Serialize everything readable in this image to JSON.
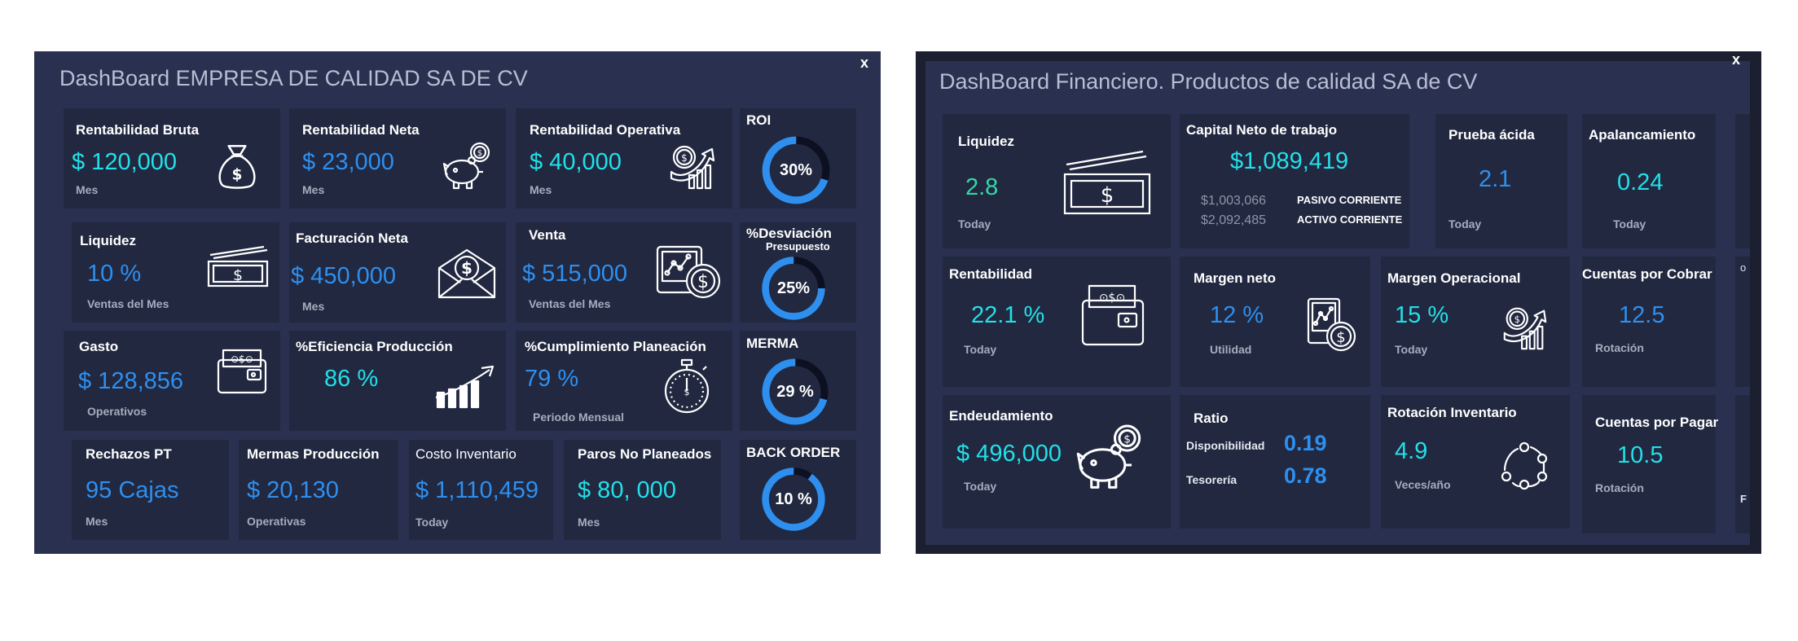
{
  "colors": {
    "panel": "#2a3150",
    "card": "#212840",
    "blue": "#2f8fee",
    "cyan": "#22e0e8",
    "green": "#34d7a6",
    "ring_track": "#0d1020"
  },
  "dashboard1": {
    "title": "DashBoard EMPRESA DE CALIDAD SA DE CV",
    "close_label": "x",
    "cards": {
      "rentabilidad_bruta": {
        "title": "Rentabilidad Bruta",
        "value": "$ 120,000",
        "sub": "Mes",
        "icon": "money-bag-icon"
      },
      "rentabilidad_neta": {
        "title": "Rentabilidad Neta",
        "value": "$ 23,000",
        "sub": "Mes",
        "icon": "piggy-bank-icon"
      },
      "rentabilidad_operativa": {
        "title": "Rentabilidad Operativa",
        "value": "$ 40,000",
        "sub": "Mes",
        "icon": "growth-coin-icon"
      },
      "liquidez": {
        "title": "Liquidez",
        "value": "10 %",
        "sub": "Ventas del Mes",
        "icon": "cash-stack-icon"
      },
      "facturacion_neta": {
        "title": "Facturación Neta",
        "value": "$ 450,000",
        "sub": "Mes",
        "icon": "money-envelope-icon"
      },
      "venta": {
        "title": "Venta",
        "value": "$ 515,000",
        "sub": "Ventas del Mes",
        "icon": "tablet-dollar-icon"
      },
      "gasto": {
        "title": "Gasto",
        "value": "$ 128,856",
        "sub": "Operativos",
        "icon": "wallet-icon"
      },
      "eficiencia": {
        "title": "%Eficiencia Producción",
        "value": "86 %",
        "icon": "growth-chart-icon"
      },
      "cumplimiento": {
        "title": "%Cumplimiento Planeación",
        "value": "79 %",
        "sub": "Periodo Mensual",
        "icon": "stopwatch-icon"
      },
      "rechazos": {
        "title": "Rechazos PT",
        "value": "95 Cajas",
        "sub": "Mes"
      },
      "mermas_produccion": {
        "title": "Mermas Producción",
        "value": "$ 20,130",
        "sub": "Operativas"
      },
      "costo_inventario": {
        "title": "Costo Inventario",
        "value": "$ 1,110,459",
        "sub": "Today"
      },
      "paros": {
        "title": "Paros No Planeados",
        "value": "$ 80, 000",
        "sub": "Mes"
      }
    },
    "gauges": {
      "roi": {
        "title": "ROI",
        "label": "30%",
        "value": 30
      },
      "desviacion": {
        "title": "%Desviación",
        "subtitle": "Presupuesto",
        "label": "25%",
        "value": 25
      },
      "merma": {
        "title": "MERMA",
        "label": "29 %",
        "value": 29
      },
      "back_order": {
        "title": "BACK ORDER",
        "label": "10 %",
        "value": 10
      }
    }
  },
  "dashboard2": {
    "title": "DashBoard Financiero. Productos de calidad SA de CV",
    "close_label": "x",
    "cards": {
      "liquidez": {
        "title": "Liquidez",
        "value": "2.8",
        "sub": "Today",
        "icon": "cash-stack-icon"
      },
      "capital": {
        "title": "Capital Neto de trabajo",
        "value": "$1,089,419",
        "pasivo_value": "$1,003,066",
        "pasivo_label": "PASIVO CORRIENTE",
        "activo_value": "$2,092,485",
        "activo_label": "ACTIVO CORRIENTE"
      },
      "prueba_acida": {
        "title": "Prueba ácida",
        "value": "2.1",
        "sub": "Today"
      },
      "apalancamiento": {
        "title": "Apalancamiento",
        "value": "0.24",
        "sub": "Today"
      },
      "rentabilidad": {
        "title": "Rentabilidad",
        "value": "22.1 %",
        "sub": "Today",
        "icon": "wallet-icon"
      },
      "margen_neto": {
        "title": "Margen neto",
        "value": "12 %",
        "sub": "Utilidad",
        "icon": "tablet-dollar-icon"
      },
      "margen_operacional": {
        "title": "Margen Operacional",
        "value": "15 %",
        "sub": "Today",
        "icon": "growth-coin-icon"
      },
      "cuentas_cobrar": {
        "title": "Cuentas por Cobrar",
        "value": "12.5",
        "sub": "Rotación"
      },
      "endeudamiento": {
        "title": "Endeudamiento",
        "value": "$ 496,000",
        "sub": "Today",
        "icon": "piggy-bank-icon"
      },
      "ratio": {
        "title": "Ratio",
        "disp_label": "Disponibilidad",
        "disp_value": "0.19",
        "tes_label": "Tesorería",
        "tes_value": "0.78"
      },
      "rotacion": {
        "title": "Rotación Inventario",
        "value": "4.9",
        "sub": "Veces/año",
        "icon": "cycle-icon"
      },
      "cuentas_pagar": {
        "title": "Cuentas por Pagar",
        "value": "10.5",
        "sub": "Rotación"
      }
    },
    "edge_marks": {
      "top": "o",
      "bottom": "F"
    }
  }
}
